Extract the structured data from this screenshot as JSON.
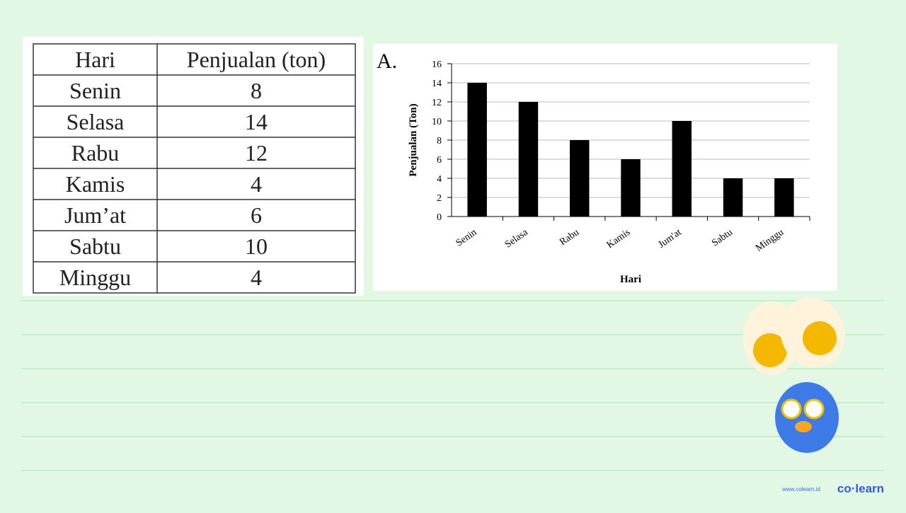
{
  "table": {
    "header": [
      "Hari",
      "Penjualan (ton)"
    ],
    "rows": [
      [
        "Senin",
        "8"
      ],
      [
        "Selasa",
        "14"
      ],
      [
        "Rabu",
        "12"
      ],
      [
        "Kamis",
        "4"
      ],
      [
        "Jum’at",
        "6"
      ],
      [
        "Sabtu",
        "10"
      ],
      [
        "Minggu",
        "4"
      ]
    ]
  },
  "option_label": "A.",
  "chart_data": {
    "type": "bar",
    "x_label": "Hari",
    "y_label": "Penjualan (Ton)",
    "categories": [
      "Senin",
      "Selasa",
      "Rabu",
      "Kamis",
      "Jum'at",
      "Sabtu",
      "Minggu"
    ],
    "values": [
      14,
      12,
      8,
      6,
      10,
      4,
      4
    ],
    "color": "#000000",
    "ylim": [
      0,
      16
    ],
    "yticks": [
      0,
      2,
      4,
      6,
      8,
      10,
      12,
      14,
      16
    ],
    "grid": true
  },
  "footer": {
    "website": "www.colearn.id",
    "brand": "co·learn"
  }
}
